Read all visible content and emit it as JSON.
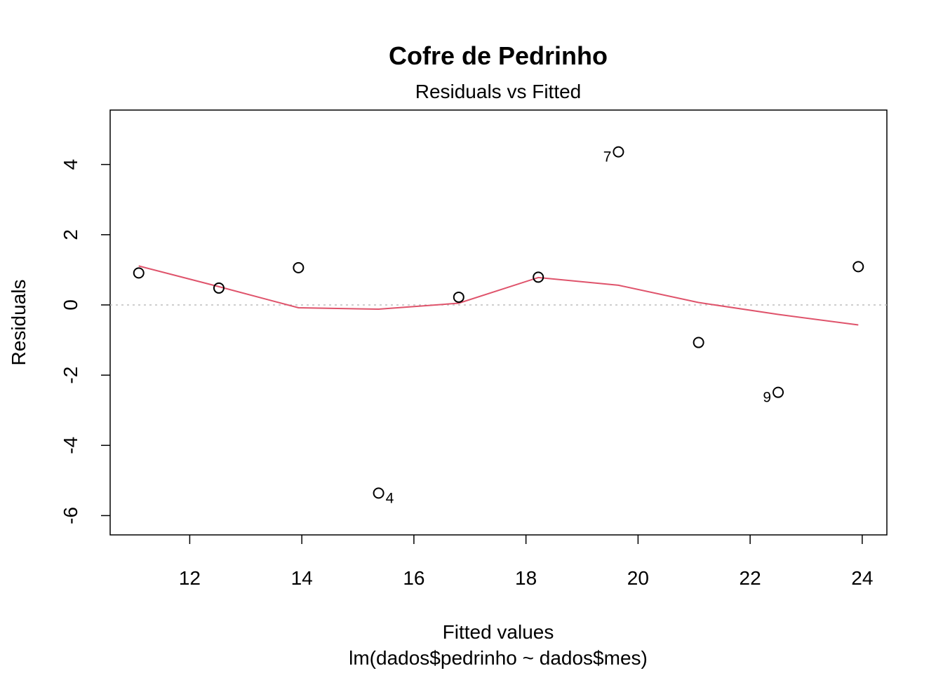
{
  "chart_data": {
    "type": "scatter",
    "title": "Cofre de Pedrinho",
    "subtitle": "Residuals vs Fitted",
    "xlabel": "Fitted values",
    "xlabel_sub": "lm(dados$pedrinho ~ dados$mes)",
    "ylabel": "Residuals",
    "xlim": [
      10.58,
      24.44
    ],
    "ylim": [
      -6.55,
      5.55
    ],
    "xticks": [
      12,
      14,
      16,
      18,
      20,
      22,
      24
    ],
    "yticks": [
      4,
      2,
      0,
      -2,
      -4,
      -6
    ],
    "x": [
      11.09,
      12.52,
      13.94,
      15.37,
      16.8,
      18.22,
      19.65,
      21.08,
      22.5,
      23.93
    ],
    "y": [
      0.91,
      0.48,
      1.06,
      -5.36,
      0.22,
      0.79,
      4.36,
      -1.07,
      -2.49,
      1.09
    ],
    "point_labels": [
      "",
      "",
      "",
      "4",
      "",
      "",
      "7",
      "",
      "9",
      ""
    ],
    "smooth_line": {
      "x": [
        11.09,
        12.52,
        13.94,
        15.37,
        16.8,
        18.22,
        19.65,
        21.08,
        22.5,
        23.93
      ],
      "y": [
        1.11,
        0.52,
        -0.08,
        -0.12,
        0.05,
        0.78,
        0.56,
        0.07,
        -0.27,
        -0.57
      ]
    },
    "reference_line_y": 0,
    "colors": {
      "smooth": "#DF536B",
      "reference": "#BEBEBE",
      "points": "#000000"
    },
    "grid": false,
    "legend": "none"
  }
}
